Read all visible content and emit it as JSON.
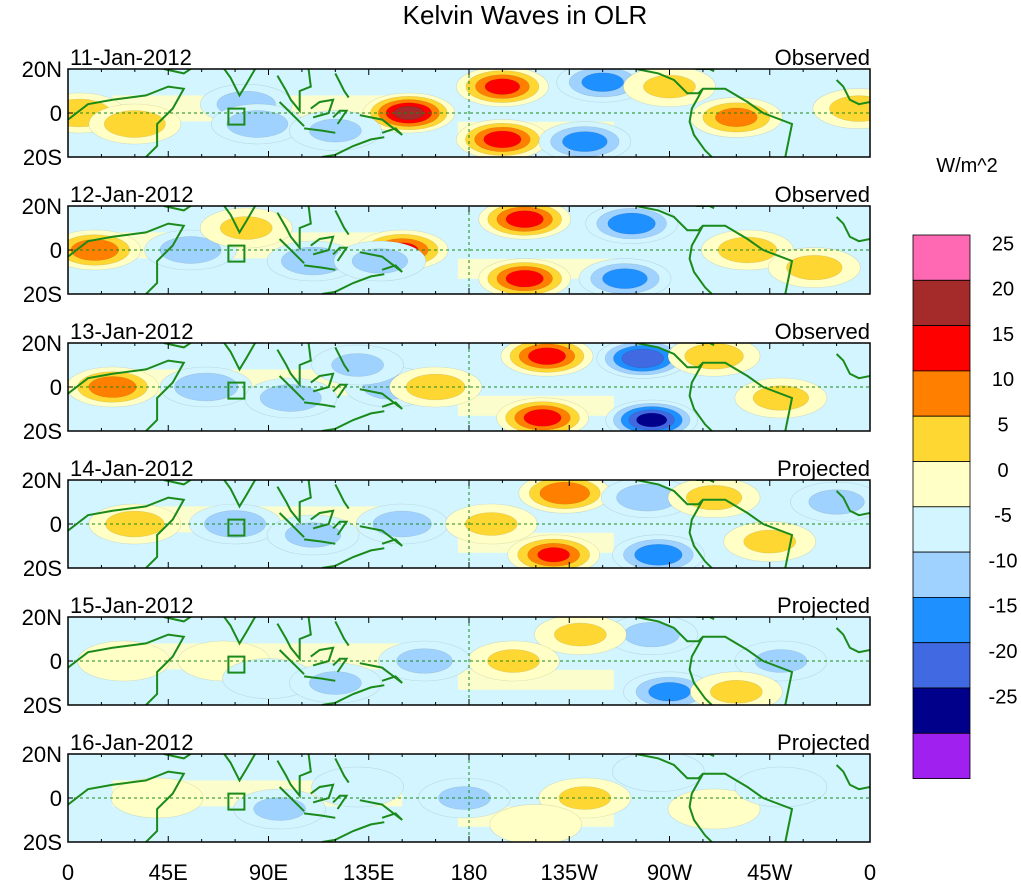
{
  "chart_data": {
    "type": "heatmap",
    "title": "Kelvin Waves in OLR",
    "colorbar_title": "W/m^2",
    "colorbar_levels": [
      "25",
      "20",
      "15",
      "10",
      "5",
      "0",
      "-5",
      "-10",
      "-15",
      "-20",
      "-25"
    ],
    "colorbar_colors": [
      "#ff69b4",
      "#a52a2a",
      "#ff0000",
      "#ff7f00",
      "#ffd733",
      "#ffffc6",
      "#d2f5ff",
      "#a0d2ff",
      "#1e90ff",
      "#4169e1",
      "#00008b",
      "#a020f0"
    ],
    "y_tick_labels": [
      "20N",
      "0",
      "20S"
    ],
    "x_tick_labels": [
      "0",
      "45E",
      "90E",
      "135E",
      "180",
      "135W",
      "90W",
      "45W",
      "0"
    ],
    "x_range": [
      0,
      360
    ],
    "y_range": [
      -20,
      20
    ],
    "panels": [
      {
        "date": "11-Jan-2012",
        "label": "Observed",
        "blobs": [
          {
            "lon": 195,
            "lat": 12,
            "v": 17
          },
          {
            "lon": 195,
            "lat": -12,
            "v": 18
          },
          {
            "lon": 153,
            "lat": 0,
            "v": 22
          },
          {
            "lon": 240,
            "lat": 14,
            "v": -12
          },
          {
            "lon": 232,
            "lat": -13,
            "v": -13
          },
          {
            "lon": 300,
            "lat": -2,
            "v": 12
          },
          {
            "lon": 80,
            "lat": 4,
            "v": -8
          },
          {
            "lon": 85,
            "lat": -5,
            "v": -9
          },
          {
            "lon": 5,
            "lat": 0,
            "v": 10
          },
          {
            "lon": 30,
            "lat": -5,
            "v": 9
          },
          {
            "lon": 120,
            "lat": -8,
            "v": -6
          },
          {
            "lon": 355,
            "lat": 2,
            "v": 8
          },
          {
            "lon": 270,
            "lat": 12,
            "v": 6
          }
        ]
      },
      {
        "date": "12-Jan-2012",
        "label": "Observed",
        "blobs": [
          {
            "lon": 205,
            "lat": 14,
            "v": 18
          },
          {
            "lon": 205,
            "lat": -13,
            "v": 18
          },
          {
            "lon": 150,
            "lat": 0,
            "v": 16
          },
          {
            "lon": 253,
            "lat": 12,
            "v": -14
          },
          {
            "lon": 250,
            "lat": -13,
            "v": -13
          },
          {
            "lon": 12,
            "lat": 0,
            "v": 14
          },
          {
            "lon": 55,
            "lat": 0,
            "v": -9
          },
          {
            "lon": 110,
            "lat": -5,
            "v": -10
          },
          {
            "lon": 305,
            "lat": 0,
            "v": 8
          },
          {
            "lon": 335,
            "lat": -8,
            "v": 7
          },
          {
            "lon": 80,
            "lat": 10,
            "v": 6
          },
          {
            "lon": 140,
            "lat": -5,
            "v": -7
          }
        ]
      },
      {
        "date": "13-Jan-2012",
        "label": "Observed",
        "blobs": [
          {
            "lon": 215,
            "lat": 14,
            "v": 18
          },
          {
            "lon": 213,
            "lat": -14,
            "v": 18
          },
          {
            "lon": 258,
            "lat": 13,
            "v": -20
          },
          {
            "lon": 262,
            "lat": -15,
            "v": -22
          },
          {
            "lon": 20,
            "lat": 0,
            "v": 14
          },
          {
            "lon": 62,
            "lat": 0,
            "v": -10
          },
          {
            "lon": 100,
            "lat": -5,
            "v": -9
          },
          {
            "lon": 145,
            "lat": 0,
            "v": -7
          },
          {
            "lon": 165,
            "lat": 0,
            "v": 8
          },
          {
            "lon": 290,
            "lat": 14,
            "v": 8
          },
          {
            "lon": 320,
            "lat": -5,
            "v": 7
          },
          {
            "lon": 130,
            "lat": 10,
            "v": -6
          }
        ]
      },
      {
        "date": "14-Jan-2012",
        "label": "Projected",
        "blobs": [
          {
            "lon": 223,
            "lat": 14,
            "v": 15
          },
          {
            "lon": 218,
            "lat": -14,
            "v": 16
          },
          {
            "lon": 265,
            "lat": -14,
            "v": -14
          },
          {
            "lon": 260,
            "lat": 12,
            "v": -9
          },
          {
            "lon": 75,
            "lat": 0,
            "v": -9
          },
          {
            "lon": 30,
            "lat": 0,
            "v": 8
          },
          {
            "lon": 110,
            "lat": -5,
            "v": -7
          },
          {
            "lon": 150,
            "lat": 0,
            "v": -8
          },
          {
            "lon": 190,
            "lat": 0,
            "v": 6
          },
          {
            "lon": 290,
            "lat": 12,
            "v": 7
          },
          {
            "lon": 345,
            "lat": 10,
            "v": -7
          },
          {
            "lon": 315,
            "lat": -8,
            "v": 6
          }
        ]
      },
      {
        "date": "15-Jan-2012",
        "label": "Projected",
        "blobs": [
          {
            "lon": 270,
            "lat": -14,
            "v": -12
          },
          {
            "lon": 262,
            "lat": 12,
            "v": -7
          },
          {
            "lon": 230,
            "lat": 12,
            "v": 6
          },
          {
            "lon": 200,
            "lat": 0,
            "v": 6
          },
          {
            "lon": 160,
            "lat": 0,
            "v": -7
          },
          {
            "lon": 70,
            "lat": 0,
            "v": 5
          },
          {
            "lon": 90,
            "lat": -8,
            "v": -5
          },
          {
            "lon": 120,
            "lat": -10,
            "v": -6
          },
          {
            "lon": 25,
            "lat": 0,
            "v": 4
          },
          {
            "lon": 320,
            "lat": 0,
            "v": -6
          },
          {
            "lon": 300,
            "lat": -14,
            "v": 6
          }
        ]
      },
      {
        "date": "16-Jan-2012",
        "label": "Projected",
        "blobs": [
          {
            "lon": 232,
            "lat": 0,
            "v": 6
          },
          {
            "lon": 178,
            "lat": 0,
            "v": -6
          },
          {
            "lon": 95,
            "lat": -5,
            "v": -6
          },
          {
            "lon": 130,
            "lat": 5,
            "v": -5
          },
          {
            "lon": 265,
            "lat": 12,
            "v": -5
          },
          {
            "lon": 290,
            "lat": -5,
            "v": 4
          },
          {
            "lon": 40,
            "lat": 0,
            "v": 3
          },
          {
            "lon": 320,
            "lat": 5,
            "v": -5
          },
          {
            "lon": 210,
            "lat": -12,
            "v": 4
          }
        ]
      }
    ]
  }
}
